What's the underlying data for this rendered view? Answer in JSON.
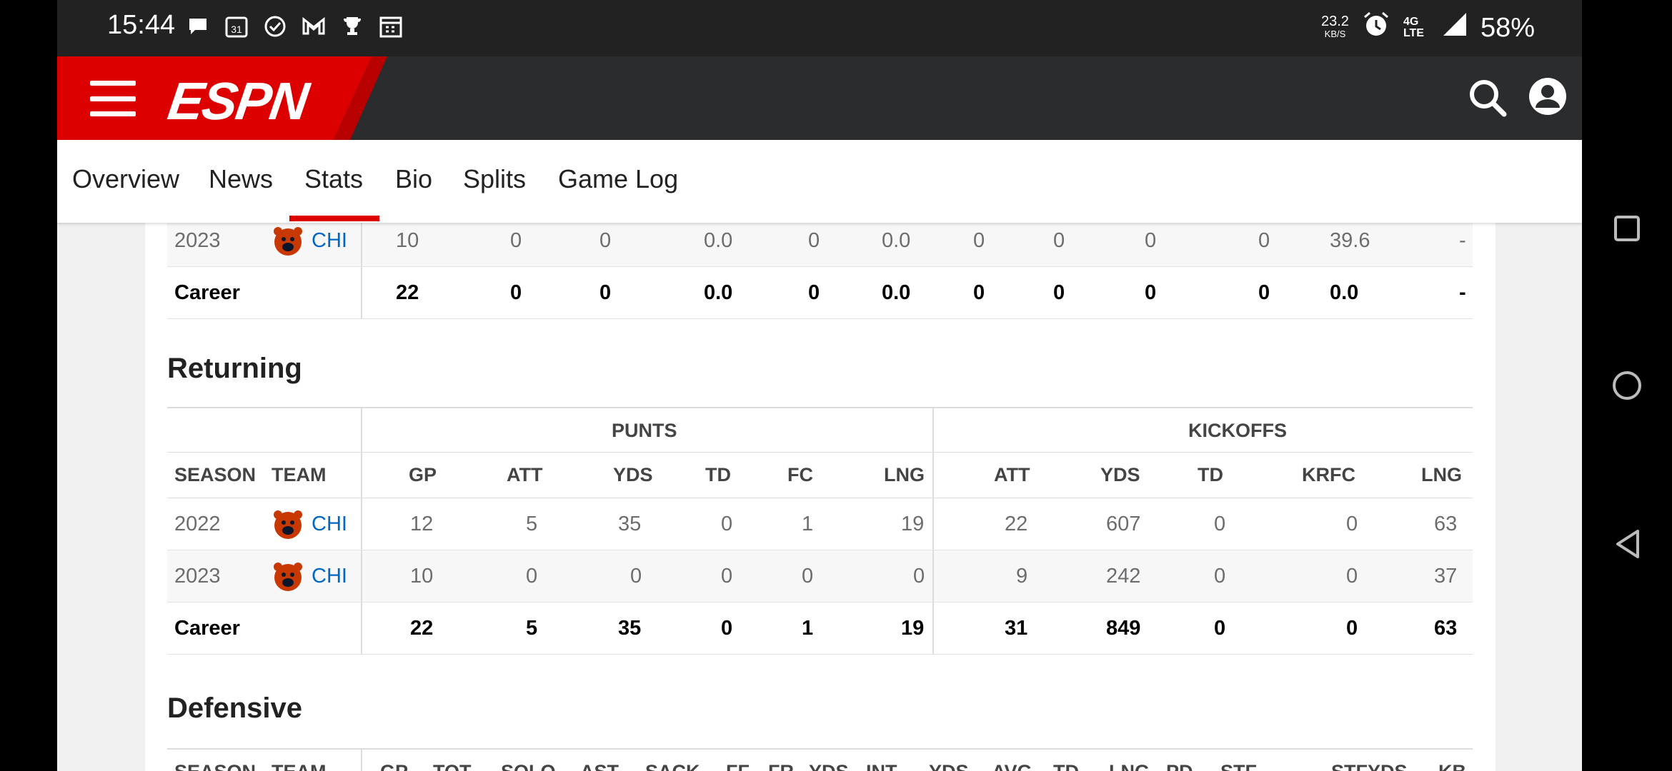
{
  "status_bar": {
    "time": "15:44",
    "speed_value": "23.2",
    "speed_unit": "KB/S",
    "network": "4G LTE",
    "battery": "58%",
    "icons": [
      "chat-icon",
      "calendar-icon",
      "check-icon",
      "gmail-icon",
      "trophy-icon",
      "calendar-grid-icon",
      "alarm-icon",
      "signal-icon"
    ]
  },
  "header": {
    "logo": "ESPN"
  },
  "tabs": [
    "Overview",
    "News",
    "Stats",
    "Bio",
    "Splits",
    "Game Log"
  ],
  "active_tab": "Stats",
  "colors": {
    "accent": "#d00000",
    "link": "#0067c5"
  },
  "kicking_partial": {
    "rows": [
      {
        "season": "2023",
        "team": "CHI",
        "values": [
          "10",
          "0",
          "0",
          "0.0",
          "0",
          "0.0",
          "0",
          "0",
          "0",
          "0",
          "39.6",
          "-"
        ]
      },
      {
        "season": "Career",
        "team": "",
        "values": [
          "22",
          "0",
          "0",
          "0.0",
          "0",
          "0.0",
          "0",
          "0",
          "0",
          "0",
          "0.0",
          "-"
        ]
      }
    ]
  },
  "returning": {
    "title": "Returning",
    "groups": [
      "PUNTS",
      "KICKOFFS"
    ],
    "headers": {
      "season": "SEASON",
      "team": "TEAM",
      "cols": [
        "GP",
        "ATT",
        "YDS",
        "TD",
        "FC",
        "LNG",
        "ATT",
        "YDS",
        "TD",
        "KRFC",
        "LNG"
      ]
    },
    "rows": [
      {
        "season": "2022",
        "team": "CHI",
        "values": [
          "12",
          "5",
          "35",
          "0",
          "1",
          "19",
          "22",
          "607",
          "0",
          "0",
          "63"
        ]
      },
      {
        "season": "2023",
        "team": "CHI",
        "values": [
          "10",
          "0",
          "0",
          "0",
          "0",
          "0",
          "9",
          "242",
          "0",
          "0",
          "37"
        ]
      },
      {
        "season": "Career",
        "team": "",
        "values": [
          "22",
          "5",
          "35",
          "0",
          "1",
          "19",
          "31",
          "849",
          "0",
          "0",
          "63"
        ]
      }
    ]
  },
  "defensive": {
    "title": "Defensive",
    "headers": [
      "SEASON",
      "TEAM",
      "GP",
      "TOT",
      "SOLO",
      "AST",
      "SACK",
      "FF",
      "FR",
      "YDS",
      "INT",
      "YDS",
      "AVG",
      "TD",
      "LNG",
      "PD",
      "STF",
      "STFYDS",
      "KB"
    ]
  }
}
